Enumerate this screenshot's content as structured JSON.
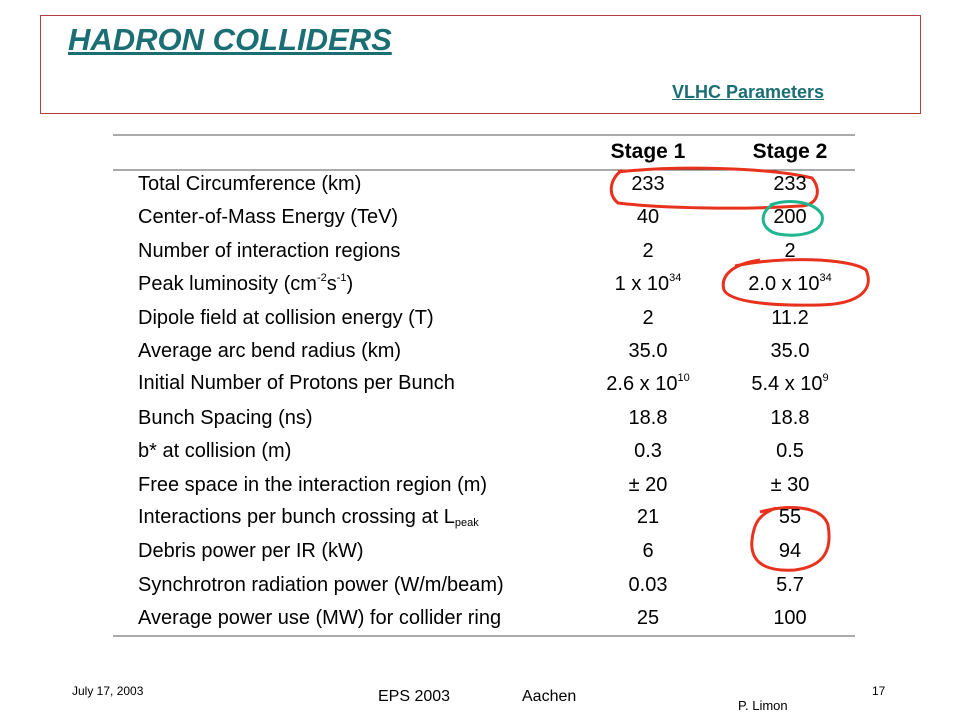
{
  "header": {
    "title": "HADRON COLLIDERS",
    "subtitle": "VLHC Parameters"
  },
  "table": {
    "columns": [
      "Stage 1",
      "Stage 2"
    ],
    "rows": [
      [
        "Total Circumference (km)",
        "233",
        "233"
      ],
      [
        "Center-of-Mass Energy (TeV)",
        "40",
        "200"
      ],
      [
        "Number of interaction regions",
        "2",
        "2"
      ],
      [
        [
          "Peak luminosity (cm",
          "-2",
          "s",
          "-1",
          ")"
        ],
        [
          "1 x 10",
          "34"
        ],
        [
          "2.0 x 10",
          "34"
        ]
      ],
      [
        "Dipole field at collision energy (T)",
        "2",
        "11.2"
      ],
      [
        "Average arc bend radius (km)",
        "35.0",
        "35.0"
      ],
      [
        "Initial Number of Protons per Bunch",
        [
          "2.6 x 10",
          "10"
        ],
        [
          "5.4 x 10",
          "9"
        ]
      ],
      [
        "Bunch Spacing  (ns)",
        "18.8",
        "18.8"
      ],
      [
        "b* at collision (m)",
        "0.3",
        "0.5"
      ],
      [
        "Free space in the interaction region (m)",
        "± 20",
        "± 30"
      ],
      [
        [
          "Interactions per bunch crossing at L",
          "peak"
        ],
        "21",
        "55"
      ],
      [
        "Debris power per IR (kW)",
        "6",
        "94"
      ],
      [
        "Synchrotron radiation power (W/m/beam)",
        "0.03",
        "5.7"
      ],
      [
        "Average power use (MW) for collider ring",
        "25",
        "100"
      ]
    ]
  },
  "footer": {
    "date": "July 17, 2003",
    "conference": "EPS 2003",
    "place": "Aachen",
    "author": "P. Limon",
    "page": "17"
  }
}
